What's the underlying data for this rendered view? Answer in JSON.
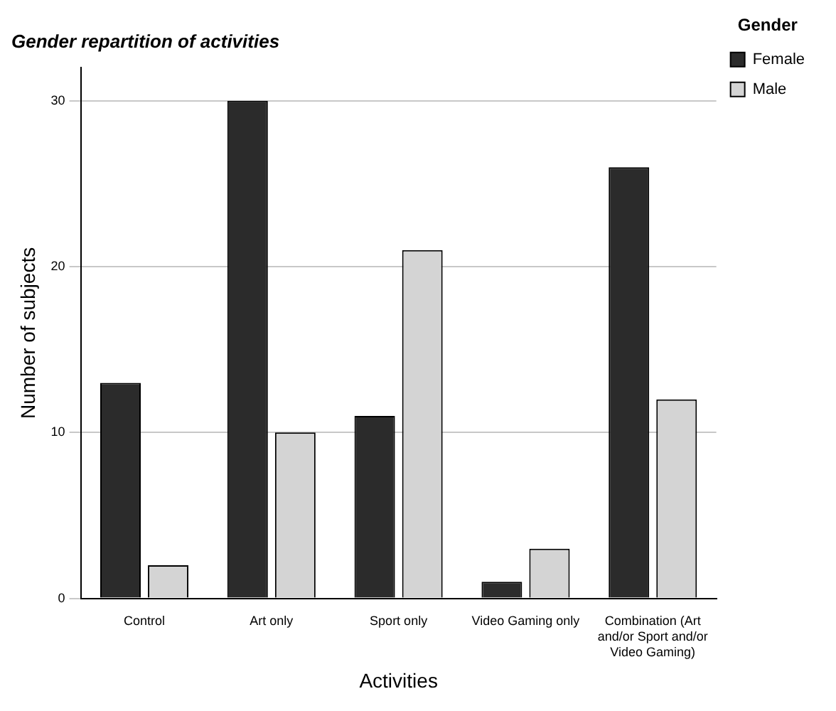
{
  "chart_data": {
    "type": "bar",
    "title": "Gender repartition of activities",
    "xlabel": "Activities",
    "ylabel": "Number of subjects",
    "legend_title": "Gender",
    "categories": [
      "Control",
      "Art only",
      "Sport only",
      "Video Gaming only",
      "Combination (Art and/or Sport and/or Video Gaming)"
    ],
    "series": [
      {
        "name": "Female",
        "color": "#2b2b2b",
        "values": [
          13,
          30,
          11,
          1,
          26
        ]
      },
      {
        "name": "Male",
        "color": "#d4d4d4",
        "values": [
          2,
          10,
          21,
          3,
          12
        ]
      }
    ],
    "ylim": [
      0,
      32
    ],
    "yticks": [
      0,
      10,
      20,
      30
    ],
    "grid": "y",
    "legend": "top right"
  }
}
